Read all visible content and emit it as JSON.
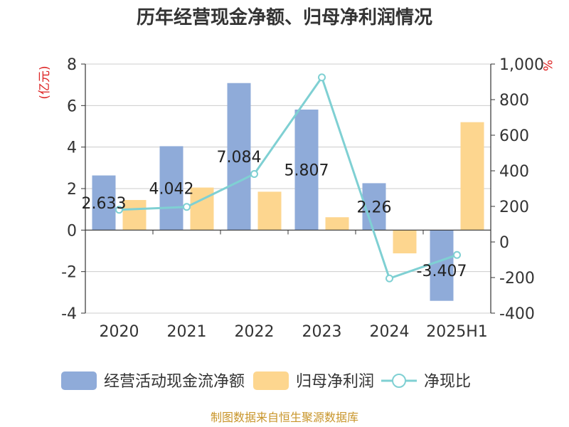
{
  "chart_data": {
    "type": "bar",
    "title": "历年经营现金净额、归母净利润情况",
    "categories": [
      "2020",
      "2021",
      "2022",
      "2023",
      "2024",
      "2025H1"
    ],
    "left_unit": "(亿元)",
    "right_unit": "%",
    "ylim": [
      -4,
      8
    ],
    "y_ticks": [
      "-4",
      "-2",
      "0",
      "2",
      "4",
      "6",
      "8"
    ],
    "y2lim": [
      -400,
      1000
    ],
    "y2_ticks": [
      "-400",
      "-200",
      "0",
      "200",
      "400",
      "600",
      "800",
      "1,000"
    ],
    "grid": true,
    "legend_position": "bottom",
    "series": [
      {
        "name": "经营活动现金流净额",
        "type": "bar",
        "axis": "left",
        "color": "#8fabd9",
        "values": [
          2.633,
          4.042,
          7.084,
          5.807,
          2.26,
          -3.407
        ],
        "labels": [
          "2.633",
          "4.042",
          "7.084",
          "5.807",
          "2.26",
          "-3.407"
        ]
      },
      {
        "name": "归母净利润",
        "type": "bar",
        "axis": "left",
        "color": "#fdd68f",
        "values": [
          1.45,
          2.05,
          1.85,
          0.62,
          -1.12,
          5.2
        ]
      },
      {
        "name": "净现比",
        "type": "line",
        "axis": "right",
        "color": "#7fd0d3",
        "values": [
          181,
          197,
          382,
          925,
          -205,
          -73
        ]
      }
    ],
    "source": "制图数据来自恒生聚源数据库"
  }
}
